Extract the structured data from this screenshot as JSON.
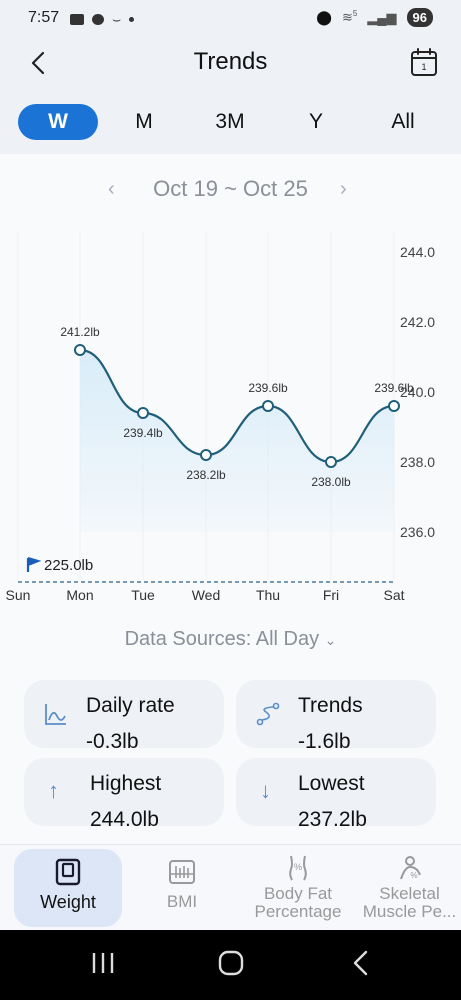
{
  "status": {
    "time": "7:57",
    "battery": "96",
    "network": "5"
  },
  "header": {
    "title": "Trends"
  },
  "range_tabs": [
    "W",
    "M",
    "3M",
    "Y",
    "All"
  ],
  "range_selected": "W",
  "week": {
    "label": "Oct 19 ~ Oct 25"
  },
  "goal_label": "225.0lb",
  "chart_data": {
    "type": "line",
    "categories": [
      "Sun",
      "Mon",
      "Tue",
      "Wed",
      "Thu",
      "Fri",
      "Sat"
    ],
    "values": [
      null,
      241.2,
      239.4,
      238.2,
      239.6,
      238.0,
      239.6
    ],
    "data_labels": [
      "",
      "241.2lb",
      "239.4lb",
      "238.2lb",
      "239.6lb",
      "238.0lb",
      "239.6lb"
    ],
    "yticks": [
      "244.0",
      "242.0",
      "240.0",
      "238.0",
      "236.0"
    ],
    "ylim": [
      235,
      244
    ],
    "goal": 225.0,
    "line_color": "#1f5f7a",
    "fill_color": "#d6ebf8"
  },
  "data_sources": "Data Sources: All Day",
  "cards": {
    "daily_rate": {
      "title": "Daily rate",
      "value": "-0.3lb"
    },
    "trends": {
      "title": "Trends",
      "value": "-1.6lb"
    },
    "highest": {
      "title": "Highest",
      "value": "244.0lb"
    },
    "lowest": {
      "title": "Lowest",
      "value": "237.2lb"
    }
  },
  "bottom_nav": {
    "weight": "Weight",
    "bmi": "BMI",
    "body_fat": "Body Fat\nPercentage",
    "skeletal": "Skeletal\nMuscle Pe..."
  },
  "colors": {
    "accent": "#1c73d6"
  }
}
